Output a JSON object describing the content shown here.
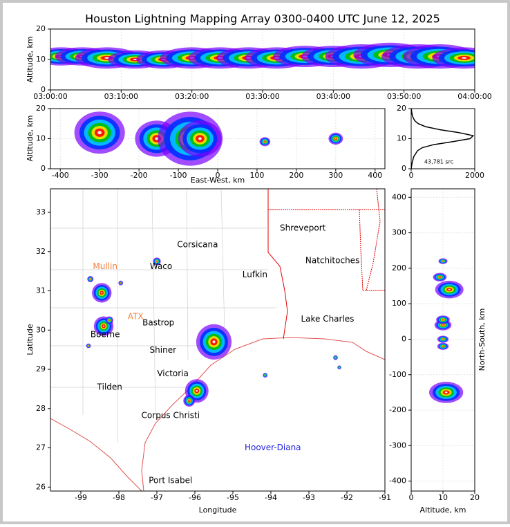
{
  "title": "Houston Lightning Mapping Array 0300-0400 UTC June 12, 2025",
  "palette": [
    "#7a00ff",
    "#0030ff",
    "#00c8ff",
    "#00c000",
    "#ffe000",
    "#ff0000",
    "#ffffff"
  ],
  "chart_data": [
    {
      "type": "scatter",
      "ylabel": "Altitude, km",
      "grid": true,
      "xlim": [
        0,
        60
      ],
      "ylim": [
        0,
        20
      ],
      "xticks": [
        {
          "value": 0,
          "label": "03:00:00"
        },
        {
          "value": 10,
          "label": "03:10:00"
        },
        {
          "value": 20,
          "label": "03:20:00"
        },
        {
          "value": 30,
          "label": "03:30:00"
        },
        {
          "value": 40,
          "label": "03:40:00"
        },
        {
          "value": 50,
          "label": "03:50:00"
        },
        {
          "value": 60,
          "label": "04:00:00"
        }
      ],
      "yticks": [
        0,
        10,
        20
      ],
      "x": [
        1.5,
        4.5,
        8,
        12,
        16,
        20,
        24,
        28,
        32,
        36,
        40,
        44,
        48,
        52,
        55,
        58.5
      ],
      "y": [
        11,
        11,
        10.5,
        10,
        10,
        10.5,
        10.5,
        10.5,
        10.5,
        11,
        11,
        11,
        11.5,
        11,
        11,
        10.5
      ],
      "size": [
        3,
        3,
        3.5,
        3,
        3,
        3.5,
        3.5,
        3.5,
        3.5,
        3.5,
        3.5,
        4,
        4,
        4,
        4,
        3.5
      ]
    },
    {
      "type": "scatter",
      "xlabel": "East-West, km",
      "ylabel": "Altitude, km",
      "grid": true,
      "xlim": [
        -425,
        425
      ],
      "ylim": [
        0,
        20
      ],
      "xticks": [
        -400,
        -300,
        -200,
        -100,
        0,
        100,
        200,
        300,
        400
      ],
      "yticks": [
        0,
        10,
        20
      ],
      "x": [
        -300,
        -155,
        -70,
        -45,
        120,
        300
      ],
      "y": [
        12,
        10,
        10,
        10,
        9,
        10
      ],
      "size": [
        7,
        6,
        9,
        6,
        1.5,
        2
      ]
    },
    {
      "type": "line",
      "grid": true,
      "annotation": "43,781 src",
      "xlim": [
        0,
        2000
      ],
      "ylim": [
        0,
        20
      ],
      "xticks": [
        0,
        2000
      ],
      "yticks": [
        0,
        10,
        20
      ],
      "x": [
        0,
        30,
        80,
        200,
        350,
        700,
        1300,
        1850,
        1950,
        1500,
        900,
        450,
        220,
        110,
        60,
        30,
        15,
        5
      ],
      "y": [
        0,
        2,
        4,
        6,
        7,
        8,
        9,
        10,
        11,
        12,
        13,
        14,
        15,
        16,
        17,
        18,
        19,
        20
      ]
    },
    {
      "type": "map",
      "xlabel": "Longitude",
      "ylabel": "Latitude",
      "xlim": [
        -99.8,
        -91
      ],
      "ylim": [
        25.9,
        33.6
      ],
      "xticks": [
        -99,
        -98,
        -97,
        -96,
        -95,
        -94,
        -93,
        -92,
        -91
      ],
      "yticks": [
        26,
        27,
        28,
        29,
        30,
        31,
        32,
        33
      ],
      "labels": [
        {
          "text": "Shreveport",
          "x": -93.16,
          "y": 32.6,
          "color": "#000000"
        },
        {
          "text": "Corsicana",
          "x": -95.93,
          "y": 32.17,
          "color": "#000000"
        },
        {
          "text": "Mullin",
          "x": -98.36,
          "y": 31.62,
          "color": "#f08040"
        },
        {
          "text": "Waco",
          "x": -96.89,
          "y": 31.62,
          "color": "#000000"
        },
        {
          "text": "Natchitoches",
          "x": -92.38,
          "y": 31.77,
          "color": "#000000"
        },
        {
          "text": "Lufkin",
          "x": -94.42,
          "y": 31.41,
          "color": "#000000"
        },
        {
          "text": "ATX",
          "x": -97.56,
          "y": 30.34,
          "color": "#f08040"
        },
        {
          "text": "Bastrop",
          "x": -96.96,
          "y": 30.18,
          "color": "#000000"
        },
        {
          "text": "Lake Charles",
          "x": -92.51,
          "y": 30.28,
          "color": "#000000"
        },
        {
          "text": "Boerne",
          "x": -98.36,
          "y": 29.88,
          "color": "#000000"
        },
        {
          "text": "Shiner",
          "x": -96.84,
          "y": 29.49,
          "color": "#000000"
        },
        {
          "text": "Victoria",
          "x": -96.58,
          "y": 28.89,
          "color": "#000000"
        },
        {
          "text": "Tilden",
          "x": -98.24,
          "y": 28.54,
          "color": "#000000"
        },
        {
          "text": "Corpus Christi",
          "x": -96.64,
          "y": 27.82,
          "color": "#000000"
        },
        {
          "text": "Hoover-Diana",
          "x": -93.95,
          "y": 27.0,
          "color": "#2020e0"
        },
        {
          "text": "Port Isabel",
          "x": -96.64,
          "y": 26.16,
          "color": "#000000"
        }
      ],
      "x": [
        -98.45,
        -98.4,
        -98.75,
        -97.95,
        -97.0,
        -98.25,
        -98.8,
        -95.5,
        -95.95,
        -96.15,
        -94.15,
        -92.3,
        -92.2
      ],
      "y": [
        30.95,
        30.1,
        31.3,
        31.2,
        31.75,
        30.25,
        29.6,
        29.7,
        28.45,
        28.2,
        28.85,
        29.3,
        29.05
      ],
      "size": [
        0.25,
        0.25,
        0.08,
        0.06,
        0.1,
        0.1,
        0.06,
        0.45,
        0.3,
        0.15,
        0.06,
        0.06,
        0.05
      ]
    },
    {
      "type": "scatter",
      "xlabel": "Altitude, km",
      "ylabel": "North-South, km",
      "grid": true,
      "xlim": [
        0,
        20
      ],
      "ylim": [
        -428,
        424
      ],
      "xticks": [
        0,
        10,
        20
      ],
      "yticks": [
        -400,
        -300,
        -200,
        -100,
        0,
        100,
        200,
        300,
        400
      ],
      "x": [
        12,
        11,
        10,
        10,
        10,
        10,
        10,
        9
      ],
      "y": [
        140,
        -150,
        220,
        40,
        55,
        0,
        -20,
        175
      ],
      "size": [
        25,
        30,
        8,
        15,
        12,
        10,
        10,
        12
      ]
    }
  ]
}
